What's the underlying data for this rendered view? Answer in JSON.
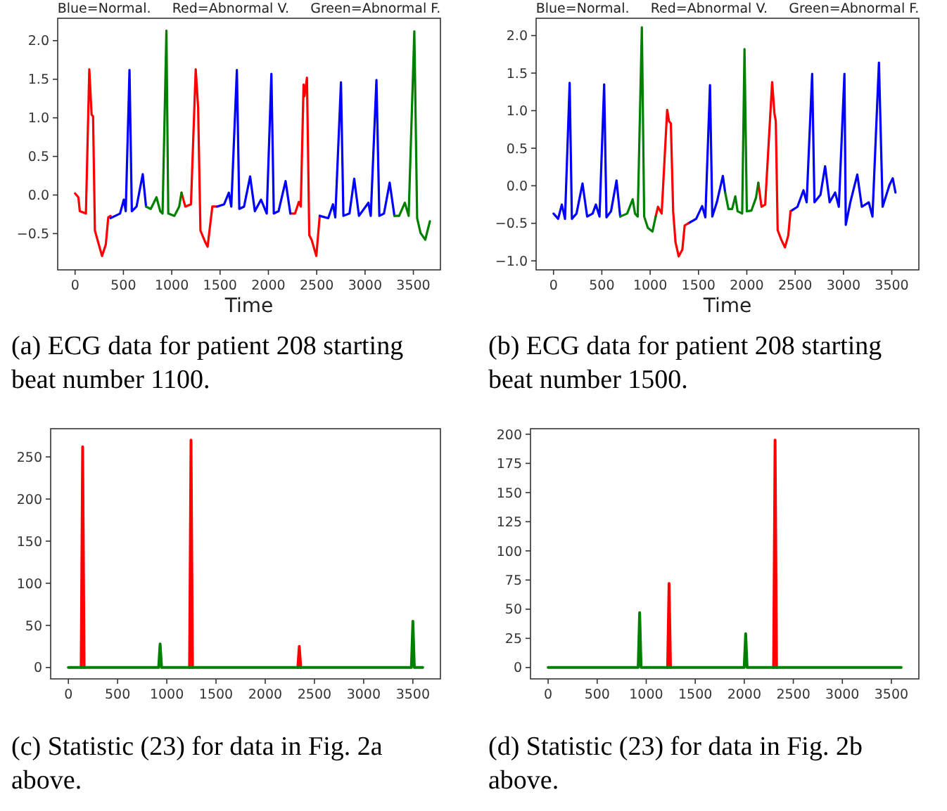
{
  "chart_data": [
    {
      "type": "line",
      "title": "Blue=Normal.     Red=Abnormal V.     Green=Abnormal F.",
      "xlabel": "Time",
      "annotations": [
        "(a) ECG data for patient 208 starting beat number 1100."
      ],
      "xlim": [
        -180,
        3780
      ],
      "ylim": [
        -0.97,
        2.29
      ],
      "xticks": [
        0,
        500,
        1000,
        1500,
        2000,
        2500,
        3000,
        3500
      ],
      "yticks": [
        {
          "value": -0.5,
          "label": "−0.5"
        },
        {
          "value": 0,
          "label": "0.0"
        },
        {
          "value": 0.5,
          "label": "0.5"
        },
        {
          "value": 1,
          "label": "1.0"
        },
        {
          "value": 1.5,
          "label": "1.5"
        },
        {
          "value": 2,
          "label": "2.0"
        }
      ],
      "series": [
        {
          "color": "#ff0000",
          "x": [
            0,
            34,
            49,
            112,
            147,
            171,
            186,
            205,
            245,
            279,
            318,
            343,
            367,
            700,
            1101,
            1140,
            1199,
            1248,
            1273,
            1297,
            1346,
            1371,
            1420,
            1469,
            1800,
            2227,
            2276,
            2315,
            2335,
            2364,
            2374,
            2399,
            2423,
            2447,
            2496,
            2531
          ],
          "values": [
            0.02,
            -0.03,
            -0.21,
            -0.24,
            1.63,
            1.04,
            1.02,
            -0.46,
            -0.64,
            -0.79,
            -0.64,
            -0.29,
            -0.27,
            null,
            0.03,
            -0.15,
            -0.12,
            1.63,
            1.13,
            -0.46,
            -0.61,
            -0.67,
            -0.15,
            -0.15,
            null,
            -0.24,
            -0.24,
            -0.09,
            -0.15,
            1.43,
            1.28,
            1.52,
            -0.52,
            -0.58,
            -0.79,
            -0.27
          ]
        },
        {
          "color": "#0000ff",
          "x": [
            367,
            465,
            504,
            524,
            563,
            587,
            636,
            700,
            734,
            1100,
            1469,
            1542,
            1591,
            1616,
            1674,
            1699,
            1748,
            1811,
            1860,
            1924,
            1983,
            2031,
            2056,
            2105,
            2178,
            2227,
            2400,
            2531,
            2619,
            2668,
            2692,
            2751,
            2776,
            2839,
            2888,
            2937,
            3035,
            3059,
            3118,
            3148,
            3196,
            3255,
            3304
          ],
          "values": [
            -0.3,
            -0.24,
            -0.06,
            -0.21,
            1.62,
            -0.21,
            -0.15,
            0.27,
            -0.15,
            null,
            -0.15,
            -0.12,
            0.03,
            -0.15,
            1.62,
            -0.18,
            -0.15,
            0.24,
            -0.21,
            -0.06,
            -0.24,
            1.57,
            -0.24,
            -0.21,
            0.18,
            -0.24,
            null,
            -0.27,
            -0.3,
            -0.12,
            -0.29,
            1.46,
            -0.27,
            -0.24,
            0.21,
            -0.27,
            -0.1,
            -0.27,
            1.49,
            -0.27,
            -0.24,
            0.16,
            -0.27
          ]
        },
        {
          "color": "#008000",
          "x": [
            734,
            783,
            842,
            881,
            905,
            945,
            964,
            1028,
            1077,
            1101,
            2000,
            3304,
            3353,
            3412,
            3451,
            3510,
            3539,
            3574,
            3623,
            3647,
            3671
          ],
          "values": [
            -0.15,
            -0.18,
            -0.03,
            -0.21,
            -0.24,
            2.13,
            -0.24,
            -0.27,
            -0.15,
            0.03,
            null,
            -0.27,
            -0.27,
            -0.1,
            -0.27,
            2.12,
            -0.3,
            -0.49,
            -0.58,
            -0.46,
            -0.34
          ]
        }
      ]
    },
    {
      "type": "line",
      "title": "Blue=Normal.     Red=Abnormal V.     Green=Abnormal F.",
      "xlabel": "Time",
      "annotations": [
        "(b) ECG data for patient 208 starting beat number 1500."
      ],
      "xlim": [
        -180,
        3780
      ],
      "ylim": [
        -1.12,
        2.23
      ],
      "xticks": [
        0,
        500,
        1000,
        1500,
        2000,
        2500,
        3000,
        3500
      ],
      "yticks": [
        {
          "value": -1,
          "label": "−1.0"
        },
        {
          "value": -0.5,
          "label": "−0.5"
        },
        {
          "value": 0,
          "label": "0.0"
        },
        {
          "value": 0.5,
          "label": "0.5"
        },
        {
          "value": 1,
          "label": "1.0"
        },
        {
          "value": 1.5,
          "label": "1.5"
        },
        {
          "value": 2,
          "label": "2.0"
        }
      ],
      "series": [
        {
          "color": "#0000ff",
          "x": [
            0,
            48,
            86,
            119,
            167,
            190,
            238,
            300,
            348,
            405,
            438,
            476,
            524,
            548,
            595,
            652,
            690,
            1000,
            1395,
            1476,
            1538,
            1571,
            1619,
            1643,
            1690,
            1752,
            1776,
            2000,
            2452,
            2524,
            2586,
            2619,
            2676,
            2700,
            2762,
            2810,
            2857,
            2914,
            2952,
            3010,
            3024,
            3071,
            3143,
            3190,
            3262,
            3300,
            3367,
            3405,
            3476,
            3510,
            3538
          ],
          "values": [
            -0.37,
            -0.44,
            -0.25,
            -0.44,
            1.37,
            -0.44,
            -0.37,
            0.03,
            -0.41,
            -0.37,
            -0.25,
            -0.41,
            1.35,
            -0.42,
            -0.34,
            0.07,
            -0.41,
            null,
            -0.5,
            -0.44,
            -0.27,
            -0.42,
            1.34,
            -0.41,
            -0.22,
            0.13,
            -0.09,
            null,
            -0.34,
            -0.28,
            -0.06,
            -0.22,
            1.49,
            -0.22,
            -0.12,
            0.26,
            -0.22,
            -0.09,
            -0.28,
            1.49,
            -0.52,
            -0.22,
            0.15,
            -0.28,
            -0.22,
            -0.41,
            1.64,
            -0.28,
            0.01,
            0.1,
            -0.09
          ]
        },
        {
          "color": "#ff0000",
          "x": [
            1057,
            1081,
            1119,
            1176,
            1195,
            1214,
            1238,
            1262,
            1295,
            1333,
            1357,
            1395,
            1700,
            2119,
            2152,
            2190,
            2262,
            2286,
            2300,
            2319,
            2357,
            2395,
            2429,
            2452
          ],
          "values": [
            -0.41,
            -0.28,
            -0.37,
            1.01,
            0.86,
            0.83,
            -0.34,
            -0.75,
            -0.94,
            -0.85,
            -0.53,
            -0.5,
            null,
            0.04,
            -0.28,
            -0.25,
            1.38,
            0.96,
            0.86,
            -0.59,
            -0.72,
            -0.82,
            -0.66,
            -0.34
          ]
        },
        {
          "color": "#008000",
          "x": [
            690,
            762,
            819,
            843,
            871,
            914,
            938,
            976,
            1024,
            1057,
            1400,
            1776,
            1810,
            1848,
            1881,
            1905,
            1952,
            1976,
            2000,
            2048,
            2095,
            2119
          ],
          "values": [
            -0.41,
            -0.37,
            -0.18,
            -0.37,
            -0.41,
            2.11,
            -0.41,
            -0.56,
            -0.61,
            -0.41,
            null,
            -0.09,
            -0.31,
            -0.31,
            -0.14,
            -0.34,
            -0.37,
            1.82,
            -0.34,
            -0.33,
            -0.16,
            0.04
          ]
        }
      ]
    },
    {
      "type": "line",
      "annotations": [
        "(c) Statistic (23) for data in Fig. 2a above."
      ],
      "xlim": [
        -180,
        3780
      ],
      "ylim": [
        -13.5,
        283.5
      ],
      "xticks": [
        0,
        500,
        1000,
        1500,
        2000,
        2500,
        3000,
        3500
      ],
      "yticks": [
        0,
        50,
        100,
        150,
        200,
        250
      ],
      "series": [
        {
          "color": "#ff0000",
          "x": [
            130,
            145,
            160,
            700,
            1231,
            1246,
            1261,
            1800,
            2331,
            2346,
            2361
          ],
          "values": [
            0,
            262,
            0,
            null,
            0,
            270,
            0,
            null,
            0,
            25,
            0
          ]
        },
        {
          "color": "#008000",
          "x": [
            0,
            917,
            932,
            947,
            3485,
            3500,
            3515,
            3600
          ],
          "values": [
            0,
            0,
            28,
            0,
            0,
            55,
            0,
            0
          ]
        }
      ]
    },
    {
      "type": "line",
      "annotations": [
        "(d) Statistic (23) for data in Fig. 2b above."
      ],
      "xlim": [
        -180,
        3780
      ],
      "ylim": [
        -9.75,
        204.75
      ],
      "xticks": [
        0,
        500,
        1000,
        1500,
        2000,
        2500,
        3000,
        3500
      ],
      "yticks": [
        0,
        25,
        50,
        75,
        100,
        125,
        150,
        175,
        200
      ],
      "series": [
        {
          "color": "#ff0000",
          "x": [
            1218,
            1233,
            1248,
            1700,
            2299,
            2314,
            2329
          ],
          "values": [
            0,
            72,
            0,
            null,
            0,
            195,
            0
          ]
        },
        {
          "color": "#008000",
          "x": [
            0,
            918,
            933,
            948,
            1999,
            2014,
            2029,
            3600
          ],
          "values": [
            0,
            0,
            47,
            0,
            0,
            29,
            0,
            0
          ]
        }
      ]
    }
  ]
}
